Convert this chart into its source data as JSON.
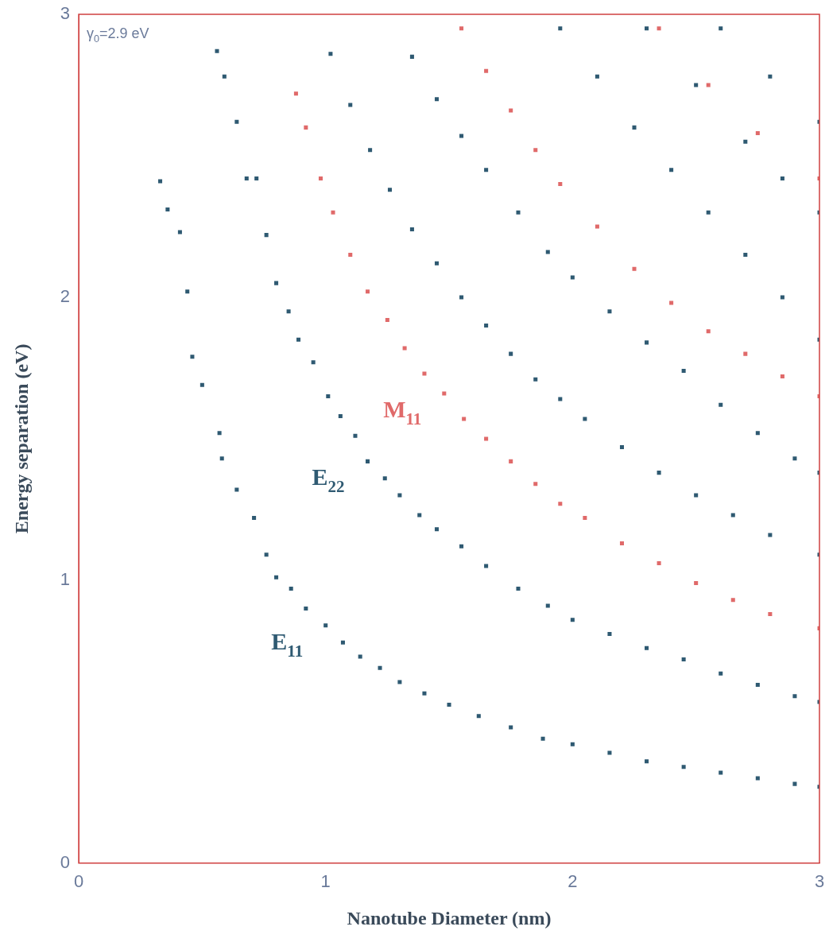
{
  "chart_data": {
    "type": "scatter",
    "xlabel": "Nanotube Diameter (nm)",
    "ylabel": "Energy separation (eV)",
    "xlim": [
      0,
      3
    ],
    "ylim": [
      0,
      3
    ],
    "xticks": [
      0,
      1,
      2,
      3
    ],
    "yticks": [
      0,
      1,
      2,
      3
    ],
    "marker": "square",
    "annotations": [
      "γ$_{0}$=2.9 eV"
    ],
    "series": [
      {
        "name": "E$_{11}$",
        "color": "#2f5a72",
        "x": [
          0.33,
          0.36,
          0.41,
          0.44,
          0.46,
          0.5,
          0.57,
          0.58,
          0.64,
          0.71,
          0.76,
          0.8,
          0.86,
          0.92,
          1.0,
          1.07,
          1.14,
          1.22,
          1.3,
          1.4,
          1.5,
          1.62,
          1.75,
          1.88,
          2.0,
          2.15,
          2.3,
          2.45,
          2.6,
          2.75,
          2.9,
          3.0
        ],
        "values": [
          2.41,
          2.31,
          2.23,
          2.02,
          1.79,
          1.69,
          1.52,
          1.43,
          1.32,
          1.22,
          1.09,
          1.01,
          0.97,
          0.9,
          0.84,
          0.78,
          0.73,
          0.69,
          0.64,
          0.6,
          0.56,
          0.52,
          0.48,
          0.44,
          0.42,
          0.39,
          0.36,
          0.34,
          0.32,
          0.3,
          0.28,
          0.27
        ]
      },
      {
        "name": "E$_{22}$",
        "color": "#2f5a72",
        "x": [
          0.56,
          0.59,
          0.64,
          0.68,
          0.72,
          0.76,
          0.8,
          0.85,
          0.89,
          0.95,
          1.01,
          1.06,
          1.12,
          1.17,
          1.24,
          1.3,
          1.38,
          1.45,
          1.55,
          1.65,
          1.78,
          1.9,
          2.0,
          2.15,
          2.3,
          2.45,
          2.6,
          2.75,
          2.9,
          3.0
        ],
        "values": [
          2.87,
          2.78,
          2.62,
          2.42,
          2.42,
          2.22,
          2.05,
          1.95,
          1.85,
          1.77,
          1.65,
          1.58,
          1.51,
          1.42,
          1.36,
          1.3,
          1.23,
          1.18,
          1.12,
          1.05,
          0.97,
          0.91,
          0.86,
          0.81,
          0.76,
          0.72,
          0.67,
          0.63,
          0.59,
          0.57
        ]
      },
      {
        "color": "#2f5a72",
        "x": [
          1.02,
          1.1,
          1.18,
          1.26,
          1.35,
          1.45,
          1.55,
          1.65,
          1.75,
          1.85,
          1.95,
          2.05,
          2.2,
          2.35,
          2.5,
          2.65,
          2.8,
          3.0,
          1.35,
          1.45,
          1.55,
          1.65,
          1.78,
          1.9,
          2.0,
          2.15,
          2.3,
          2.45,
          2.6,
          2.75,
          2.9,
          3.0,
          1.95,
          2.1,
          2.25,
          2.4,
          2.55,
          2.7,
          2.85,
          3.0,
          2.3,
          2.5,
          2.7,
          2.85,
          3.0,
          2.6,
          2.8,
          3.0
        ],
        "values": [
          2.86,
          2.68,
          2.52,
          2.38,
          2.24,
          2.12,
          2.0,
          1.9,
          1.8,
          1.71,
          1.64,
          1.57,
          1.47,
          1.38,
          1.3,
          1.23,
          1.16,
          1.09,
          2.85,
          2.7,
          2.57,
          2.45,
          2.3,
          2.16,
          2.07,
          1.95,
          1.84,
          1.74,
          1.62,
          1.52,
          1.43,
          1.38,
          2.95,
          2.78,
          2.6,
          2.45,
          2.3,
          2.15,
          2.0,
          1.85,
          2.95,
          2.75,
          2.55,
          2.42,
          2.3,
          2.95,
          2.78,
          2.62
        ]
      },
      {
        "name": "M$_{11}$",
        "color": "#e06a6a",
        "x": [
          0.88,
          0.92,
          0.98,
          1.03,
          1.1,
          1.17,
          1.25,
          1.32,
          1.4,
          1.48,
          1.56,
          1.65,
          1.75,
          1.85,
          1.95,
          2.05,
          2.2,
          2.35,
          2.5,
          2.65,
          2.8,
          3.0
        ],
        "values": [
          2.72,
          2.6,
          2.42,
          2.3,
          2.15,
          2.02,
          1.92,
          1.82,
          1.73,
          1.66,
          1.57,
          1.5,
          1.42,
          1.34,
          1.27,
          1.22,
          1.13,
          1.06,
          0.99,
          0.93,
          0.88,
          0.83
        ]
      },
      {
        "color": "#e06a6a",
        "x": [
          1.55,
          1.65,
          1.75,
          1.85,
          1.95,
          2.1,
          2.25,
          2.4,
          2.55,
          2.7,
          2.85,
          3.0,
          2.35,
          2.55,
          2.75,
          3.0
        ],
        "values": [
          2.95,
          2.8,
          2.66,
          2.52,
          2.4,
          2.25,
          2.1,
          1.98,
          1.88,
          1.8,
          1.72,
          1.65,
          2.95,
          2.75,
          2.58,
          2.42
        ]
      }
    ]
  }
}
